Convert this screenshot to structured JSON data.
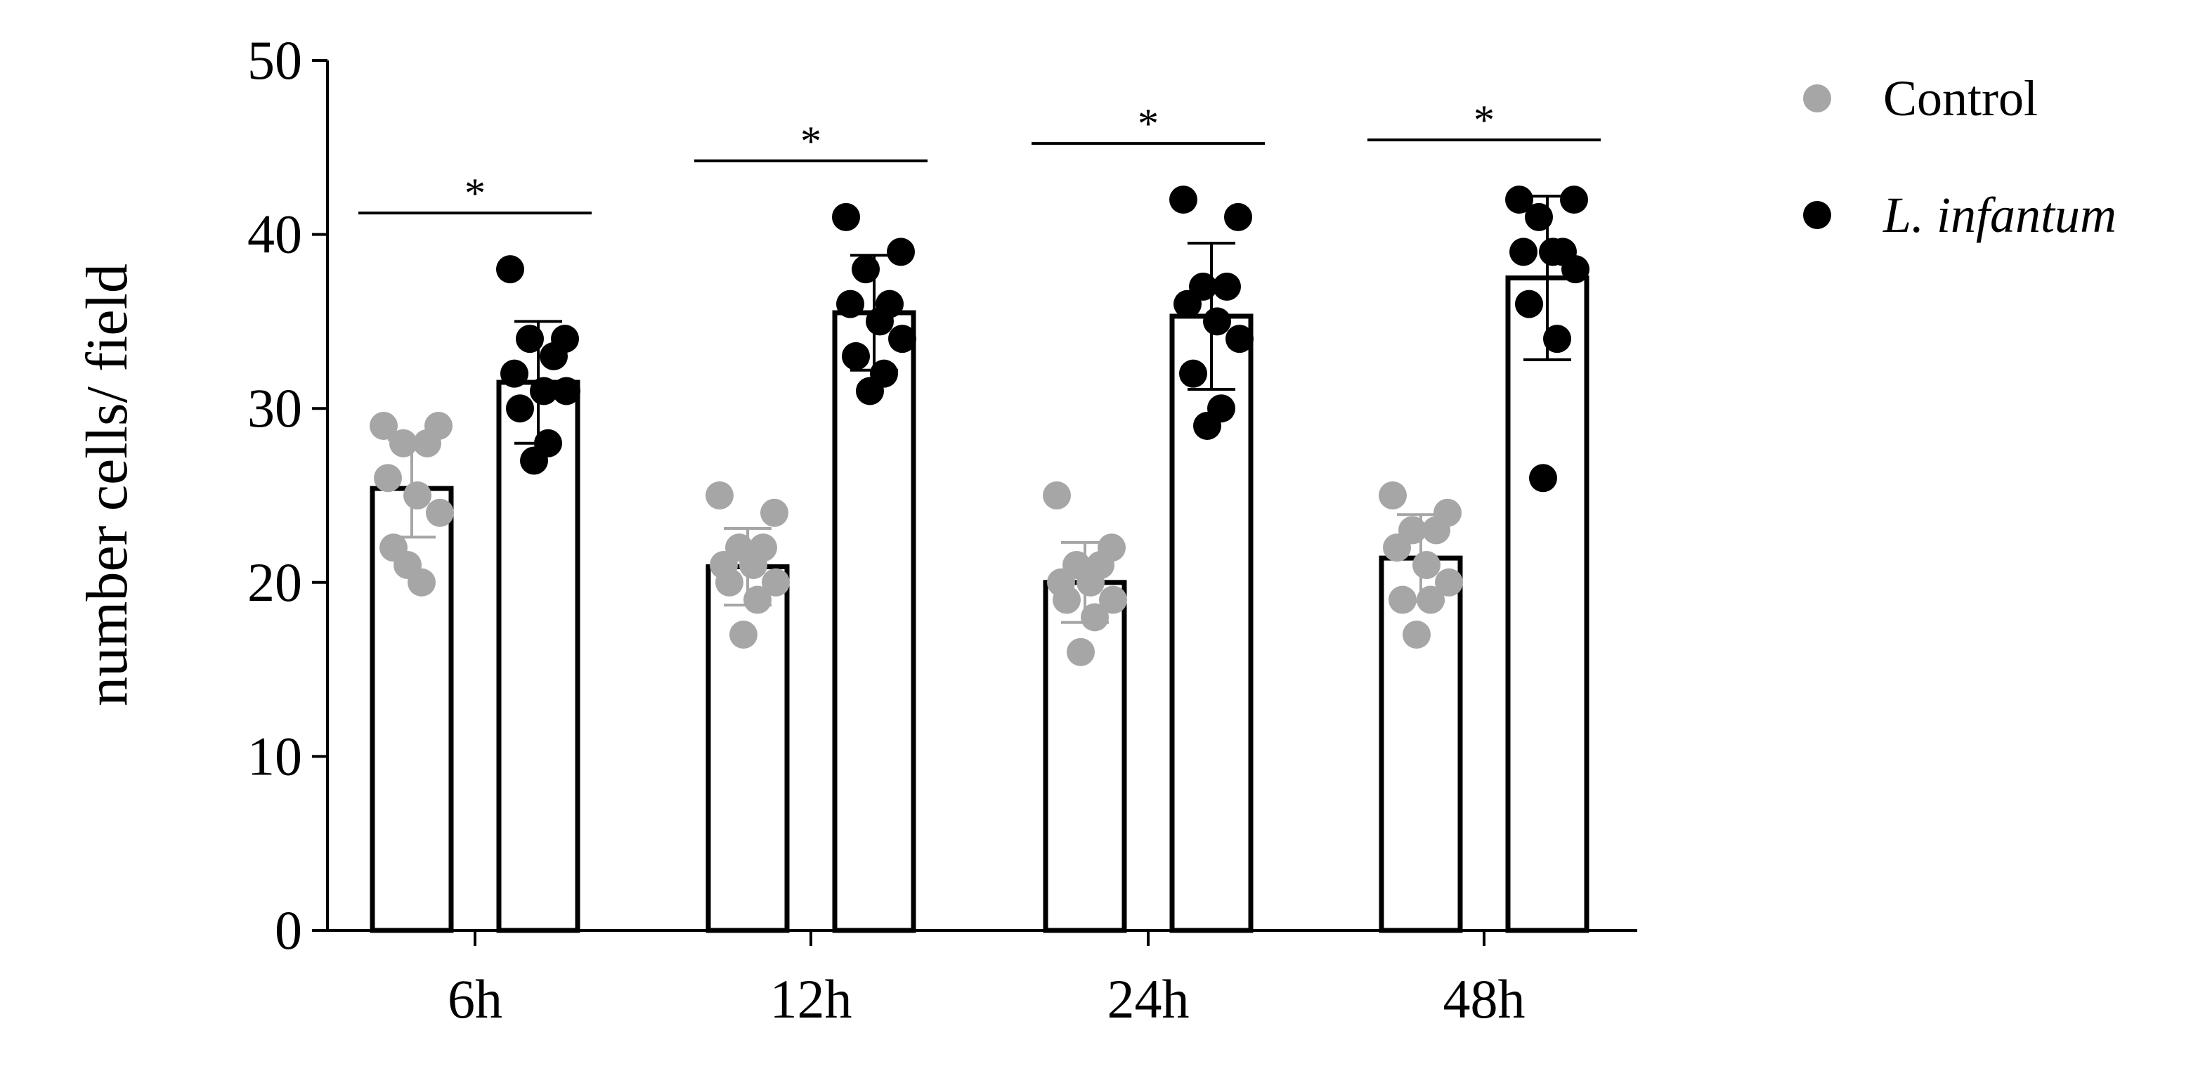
{
  "chart_data": {
    "type": "bar",
    "title": "",
    "xlabel": "",
    "ylabel": "number cells/ field",
    "ylim": [
      0,
      50
    ],
    "yticks": [
      0,
      10,
      20,
      30,
      40,
      50
    ],
    "categories": [
      "6h",
      "12h",
      "24h",
      "48h"
    ],
    "legend_placement": "top-right",
    "grid": false,
    "series": [
      {
        "name": "Control",
        "color": "#a6a6a6",
        "values": [
          25.4,
          20.9,
          20.0,
          21.4
        ],
        "errors": [
          2.8,
          2.2,
          2.3,
          2.5
        ],
        "points": [
          [
            29,
            29,
            28,
            28,
            26,
            25,
            24,
            22,
            20,
            21
          ],
          [
            25,
            24,
            22,
            22,
            21,
            21,
            20,
            20,
            19,
            17
          ],
          [
            25,
            22,
            21,
            21,
            20,
            20,
            19,
            19,
            18,
            16
          ],
          [
            25,
            24,
            23,
            23,
            22,
            21,
            20,
            19,
            19,
            17
          ]
        ]
      },
      {
        "name": "L. infantum",
        "color": "#000000",
        "values": [
          31.5,
          35.5,
          35.3,
          37.5
        ],
        "errors": [
          3.5,
          3.3,
          4.2,
          4.7
        ],
        "points": [
          [
            38,
            34,
            34,
            33,
            32,
            31,
            31,
            30,
            28,
            27
          ],
          [
            41,
            39,
            38,
            36,
            36,
            35,
            34,
            33,
            32,
            31
          ],
          [
            42,
            41,
            37,
            37,
            36,
            35,
            34,
            32,
            30,
            29
          ],
          [
            42,
            42,
            41,
            39,
            39,
            39,
            38,
            36,
            34,
            26
          ]
        ]
      }
    ],
    "annotations": [
      {
        "category": "6h",
        "text": "*"
      },
      {
        "category": "12h",
        "text": "*"
      },
      {
        "category": "24h",
        "text": "*"
      },
      {
        "category": "48h",
        "text": "*"
      }
    ]
  }
}
